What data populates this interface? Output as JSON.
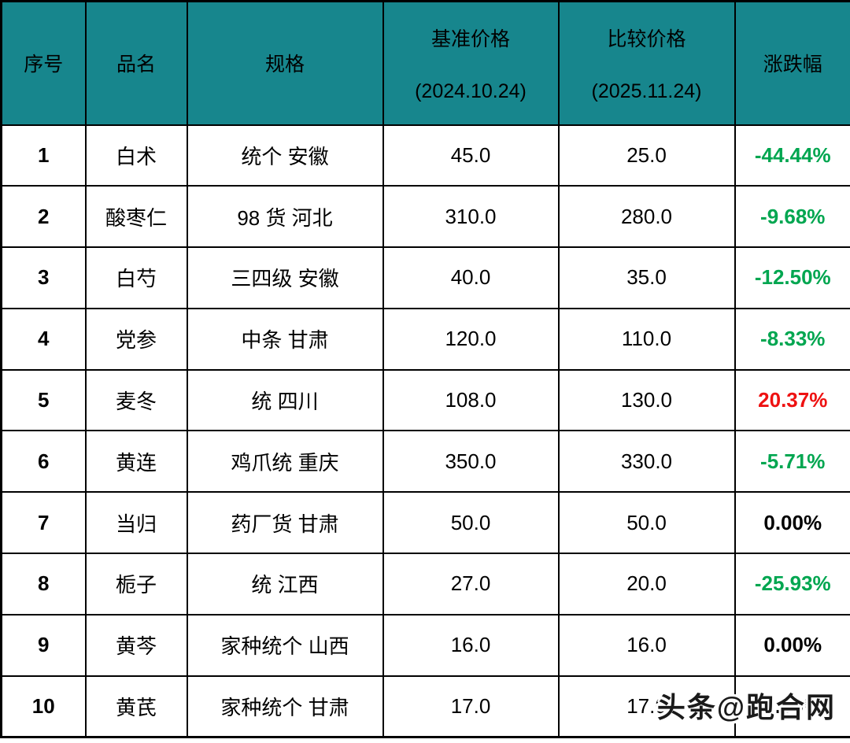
{
  "table": {
    "headers": {
      "index": "序号",
      "name": "品名",
      "spec": "规格",
      "base_price_title": "基准价格",
      "base_price_date": "(2024.10.24)",
      "compare_price_title": "比较价格",
      "compare_price_date": "(2025.11.24)",
      "change": "涨跌幅"
    },
    "rows": [
      {
        "index": "1",
        "name": "白术",
        "spec": "统个 安徽",
        "base": "45.0",
        "compare": "25.0",
        "change": "-44.44%",
        "trend": "down"
      },
      {
        "index": "2",
        "name": "酸枣仁",
        "spec": "98 货 河北",
        "base": "310.0",
        "compare": "280.0",
        "change": "-9.68%",
        "trend": "down"
      },
      {
        "index": "3",
        "name": "白芍",
        "spec": "三四级 安徽",
        "base": "40.0",
        "compare": "35.0",
        "change": "-12.50%",
        "trend": "down"
      },
      {
        "index": "4",
        "name": "党参",
        "spec": "中条 甘肃",
        "base": "120.0",
        "compare": "110.0",
        "change": "-8.33%",
        "trend": "down"
      },
      {
        "index": "5",
        "name": "麦冬",
        "spec": "统 四川",
        "base": "108.0",
        "compare": "130.0",
        "change": "20.37%",
        "trend": "up"
      },
      {
        "index": "6",
        "name": "黄连",
        "spec": "鸡爪统 重庆",
        "base": "350.0",
        "compare": "330.0",
        "change": "-5.71%",
        "trend": "down"
      },
      {
        "index": "7",
        "name": "当归",
        "spec": "药厂货 甘肃",
        "base": "50.0",
        "compare": "50.0",
        "change": "0.00%",
        "trend": "flat"
      },
      {
        "index": "8",
        "name": "栀子",
        "spec": "统 江西",
        "base": "27.0",
        "compare": "20.0",
        "change": "-25.93%",
        "trend": "down"
      },
      {
        "index": "9",
        "name": "黄芩",
        "spec": "家种统个 山西",
        "base": "16.0",
        "compare": "16.0",
        "change": "0.00%",
        "trend": "flat"
      },
      {
        "index": "10",
        "name": "黄芪",
        "spec": "家种统个 甘肃",
        "base": "17.0",
        "compare": "17.0",
        "change": "0.00%",
        "trend": "flat"
      }
    ]
  },
  "colors": {
    "header_bg": "#17868d",
    "down": "#00a650",
    "up": "#ee1111",
    "flat": "#000000"
  },
  "watermark": {
    "text": "头条@跑合网"
  }
}
